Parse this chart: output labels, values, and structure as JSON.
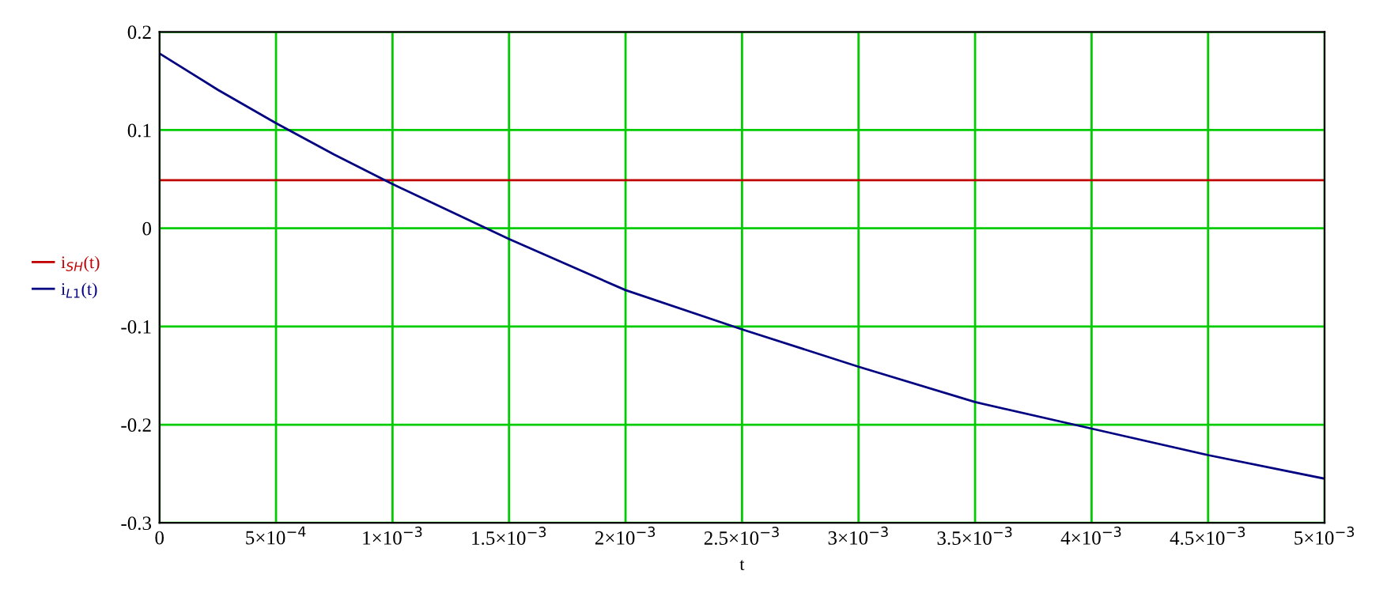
{
  "chart_data": {
    "type": "line",
    "xlabel": "t",
    "x": [
      0,
      0.00025,
      0.0005,
      0.00075,
      0.001,
      0.0015,
      0.002,
      0.0025,
      0.003,
      0.0035,
      0.004,
      0.0045,
      0.005
    ],
    "series": [
      {
        "name": "i$_{SH}$(t)",
        "color": "#c00000",
        "values": [
          0.049,
          0.049,
          0.049,
          0.049,
          0.049,
          0.049,
          0.049,
          0.049,
          0.049,
          0.049,
          0.049,
          0.049,
          0.049
        ]
      },
      {
        "name": "i$_{L1}$(t)",
        "color": "#000080",
        "values": [
          0.178,
          0.141,
          0.107,
          0.075,
          0.045,
          -0.011,
          -0.063,
          -0.103,
          -0.141,
          -0.177,
          -0.204,
          -0.231,
          -0.255
        ]
      }
    ],
    "xlim": [
      0,
      0.005
    ],
    "ylim": [
      -0.3,
      0.2
    ],
    "xticks": [
      0,
      {
        "value": 0.0005,
        "label": "5×10$^{−4}$"
      },
      {
        "value": 0.001,
        "label": "1×10$^{−3}$"
      },
      {
        "value": 0.0015,
        "label": "1.5×10$^{−3}$"
      },
      {
        "value": 0.002,
        "label": "2×10$^{−3}$"
      },
      {
        "value": 0.0025,
        "label": "2.5×10$^{−3}$"
      },
      {
        "value": 0.003,
        "label": "3×10$^{−3}$"
      },
      {
        "value": 0.0035,
        "label": "3.5×10$^{−3}$"
      },
      {
        "value": 0.004,
        "label": "4×10$^{−3}$"
      },
      {
        "value": 0.0045,
        "label": "4.5×10$^{−3}$"
      },
      {
        "value": 0.005,
        "label": "5×10$^{−3}$"
      }
    ],
    "yticks": [
      -0.3,
      -0.2,
      -0.1,
      0,
      0.1,
      0.2
    ],
    "grid": true,
    "legend": "left",
    "marker": "none",
    "line_style": "solid"
  }
}
